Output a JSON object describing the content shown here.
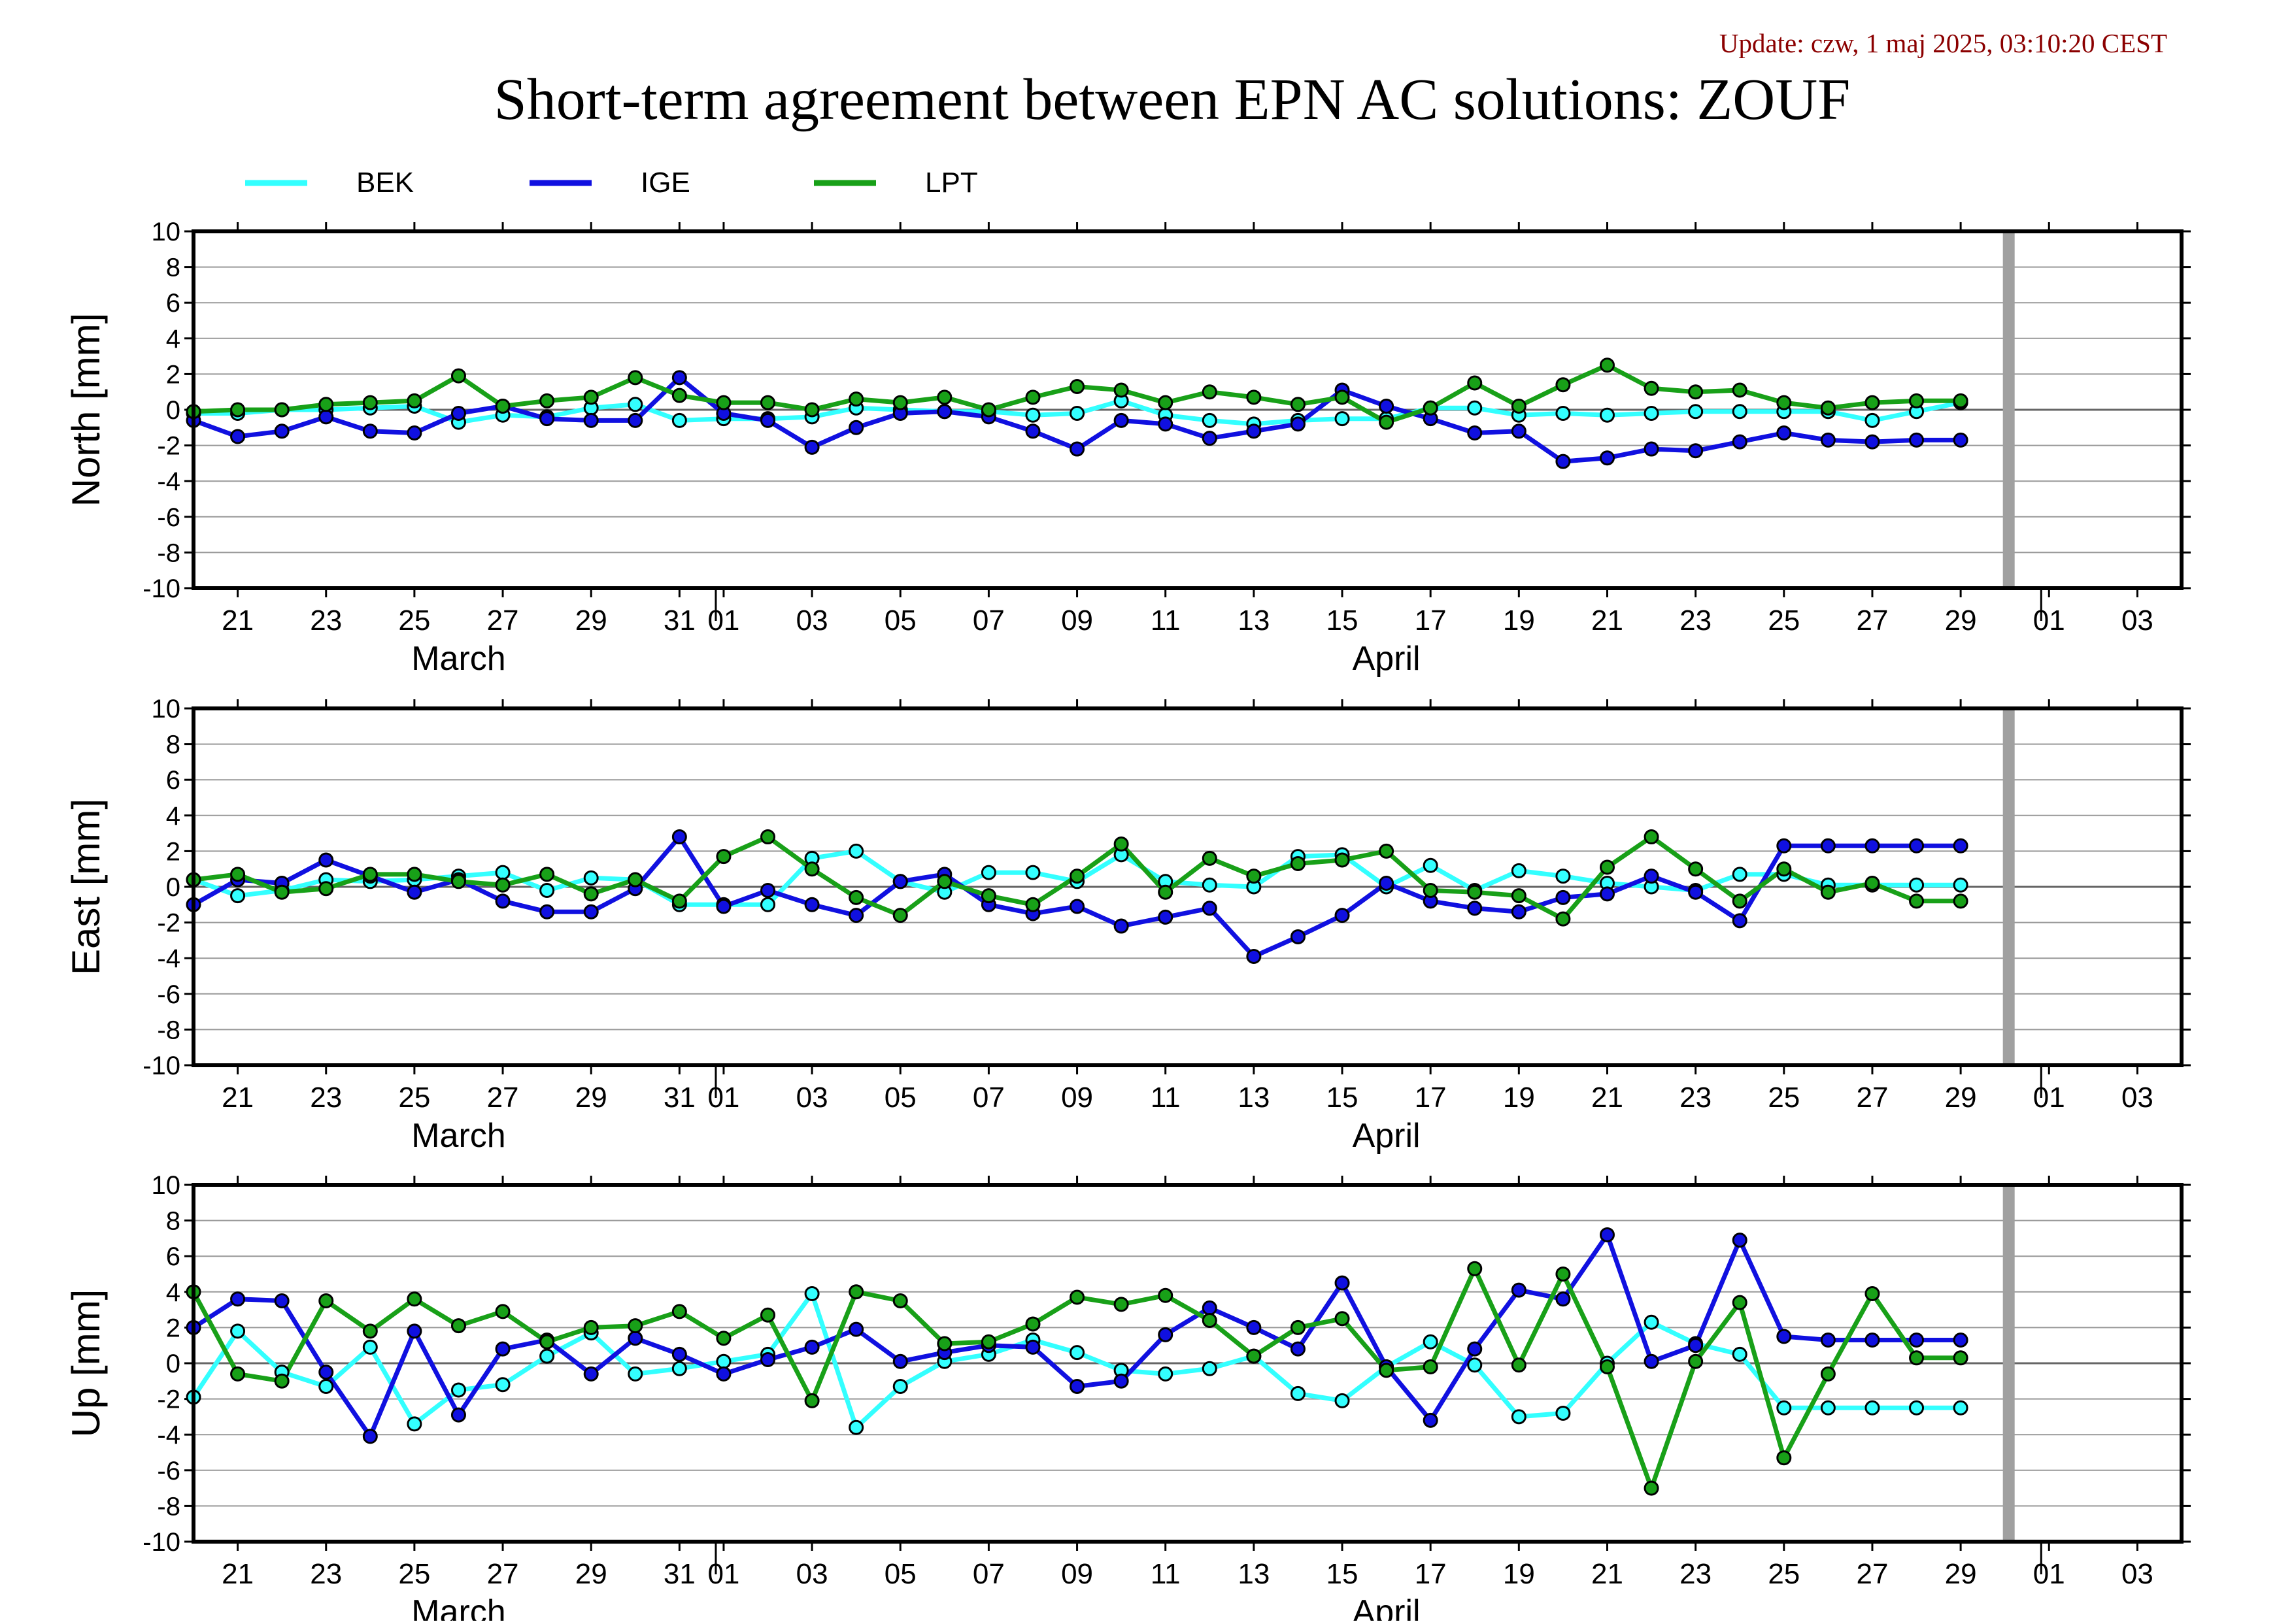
{
  "header": {
    "update": "Update: czw, 1 maj 2025, 03:10:20 CEST",
    "title": "Short-term agreement between EPN AC solutions: ZOUF"
  },
  "colors": {
    "BEK": "#33ffff",
    "IGE": "#1010e0",
    "LPT": "#18a018",
    "update_text": "#8b0000",
    "grid": "#999999",
    "now_bar": "#a0a0a0"
  },
  "legend": [
    {
      "name": "BEK",
      "color": "#33ffff"
    },
    {
      "name": "IGE",
      "color": "#1010e0"
    },
    {
      "name": "LPT",
      "color": "#18a018"
    }
  ],
  "x_axis": {
    "range": [
      "2025-03-20",
      "2025-05-04"
    ],
    "tick_labels": [
      "21",
      "23",
      "25",
      "27",
      "29",
      "31",
      "01",
      "03",
      "05",
      "07",
      "09",
      "11",
      "13",
      "15",
      "17",
      "19",
      "21",
      "23",
      "25",
      "27",
      "29",
      "01",
      "03"
    ],
    "month_labels": [
      "March",
      "April"
    ],
    "now_marker": "2025-04-30"
  },
  "chart_data": [
    {
      "type": "line",
      "ylabel": "North [mm]",
      "ylim": [
        -10,
        10
      ],
      "yticks": [
        "10",
        "8",
        "6",
        "4",
        "2",
        "0",
        "-2",
        "-4",
        "-6",
        "-8",
        "-10"
      ],
      "x_start": "2025-03-20",
      "series": [
        {
          "name": "BEK",
          "x": [
            0,
            1,
            2,
            3,
            4,
            5,
            6,
            7,
            8,
            9,
            10,
            11,
            12,
            13,
            14,
            15,
            16,
            17,
            18,
            19,
            20,
            21,
            22,
            23,
            24,
            25,
            26,
            27,
            28,
            29,
            30,
            31,
            32,
            33,
            34,
            35,
            36,
            37,
            38,
            39,
            40
          ],
          "y": [
            -0.2,
            -0.2,
            0,
            0,
            0.1,
            0.2,
            -0.7,
            -0.3,
            -0.4,
            0.1,
            0.3,
            -0.6,
            -0.5,
            -0.5,
            -0.4,
            0.1,
            0,
            -0.1,
            -0.1,
            -0.3,
            -0.2,
            0.5,
            -0.3,
            -0.6,
            -0.8,
            -0.6,
            -0.5,
            -0.5,
            0.1,
            0.1,
            -0.3,
            -0.2,
            -0.3,
            -0.2,
            -0.1,
            -0.1,
            -0.1,
            -0.1,
            -0.6,
            -0.1,
            0.4
          ]
        },
        {
          "name": "IGE",
          "x": [
            0,
            1,
            2,
            3,
            4,
            5,
            6,
            7,
            8,
            9,
            10,
            11,
            12,
            13,
            14,
            15,
            16,
            17,
            18,
            19,
            20,
            21,
            22,
            23,
            24,
            25,
            26,
            27,
            28,
            29,
            30,
            31,
            32,
            33,
            34,
            35,
            36,
            37,
            38,
            39,
            40
          ],
          "y": [
            -0.6,
            -1.5,
            -1.2,
            -0.4,
            -1.2,
            -1.3,
            -0.2,
            0.2,
            -0.5,
            -0.6,
            -0.6,
            1.8,
            -0.2,
            -0.6,
            -2.1,
            -1.0,
            -0.2,
            -0.1,
            -0.4,
            -1.2,
            -2.2,
            -0.6,
            -0.8,
            -1.6,
            -1.2,
            -0.8,
            1.1,
            0.2,
            -0.5,
            -1.3,
            -1.2,
            -2.9,
            -2.7,
            -2.2,
            -2.3,
            -1.8,
            -1.3,
            -1.7,
            -1.8,
            -1.7,
            -1.7
          ]
        },
        {
          "name": "LPT",
          "x": [
            0,
            1,
            2,
            3,
            4,
            5,
            6,
            7,
            8,
            9,
            10,
            11,
            12,
            13,
            14,
            15,
            16,
            17,
            18,
            19,
            20,
            21,
            22,
            23,
            24,
            25,
            26,
            27,
            28,
            29,
            30,
            31,
            32,
            33,
            34,
            35,
            36,
            37,
            38,
            39,
            40
          ],
          "y": [
            -0.1,
            0,
            0,
            0.3,
            0.4,
            0.5,
            1.9,
            0.2,
            0.5,
            0.7,
            1.8,
            0.8,
            0.4,
            0.4,
            0,
            0.6,
            0.4,
            0.7,
            0,
            0.7,
            1.3,
            1.1,
            0.4,
            1.0,
            0.7,
            0.3,
            0.7,
            -0.7,
            0.1,
            1.5,
            0.2,
            1.4,
            2.5,
            1.2,
            1.0,
            1.1,
            0.4,
            0.1,
            0.4,
            0.5,
            0.5
          ]
        }
      ]
    },
    {
      "type": "line",
      "ylabel": "East [mm]",
      "ylim": [
        -10,
        10
      ],
      "yticks": [
        "10",
        "8",
        "6",
        "4",
        "2",
        "0",
        "-2",
        "-4",
        "-6",
        "-8",
        "-10"
      ],
      "x_start": "2025-03-20",
      "series": [
        {
          "name": "BEK",
          "x": [
            0,
            1,
            2,
            3,
            4,
            5,
            6,
            7,
            8,
            9,
            10,
            11,
            12,
            13,
            14,
            15,
            16,
            17,
            18,
            19,
            20,
            21,
            22,
            23,
            24,
            25,
            26,
            27,
            28,
            29,
            30,
            31,
            32,
            33,
            34,
            35,
            36,
            37,
            38,
            39,
            40
          ],
          "y": [
            0.4,
            -0.5,
            -0.2,
            0.4,
            0.3,
            0.4,
            0.6,
            0.8,
            -0.2,
            0.5,
            0.4,
            -1.0,
            -1.0,
            -1.0,
            1.6,
            2.0,
            0.3,
            -0.3,
            0.8,
            0.8,
            0.3,
            1.8,
            0.3,
            0.1,
            0,
            1.7,
            1.8,
            0,
            1.2,
            -0.2,
            0.9,
            0.6,
            0.2,
            0,
            -0.2,
            0.7,
            0.7,
            0.1,
            0.1,
            0.1,
            0.1
          ]
        },
        {
          "name": "IGE",
          "x": [
            0,
            1,
            2,
            3,
            4,
            5,
            6,
            7,
            8,
            9,
            10,
            11,
            12,
            13,
            14,
            15,
            16,
            17,
            18,
            19,
            20,
            21,
            22,
            23,
            24,
            25,
            26,
            27,
            28,
            29,
            30,
            31,
            32,
            33,
            34,
            35,
            36,
            37,
            38,
            39,
            40
          ],
          "y": [
            -1.0,
            0.4,
            0.2,
            1.5,
            0.6,
            -0.3,
            0.4,
            -0.8,
            -1.4,
            -1.4,
            -0.1,
            2.8,
            -1.1,
            -0.2,
            -1.0,
            -1.6,
            0.3,
            0.7,
            -1.0,
            -1.5,
            -1.1,
            -2.2,
            -1.7,
            -1.2,
            -3.9,
            -2.8,
            -1.6,
            0.2,
            -0.8,
            -1.2,
            -1.4,
            -0.6,
            -0.4,
            0.6,
            -0.3,
            -1.9,
            2.3,
            2.3,
            2.3,
            2.3,
            2.3
          ]
        },
        {
          "name": "LPT",
          "x": [
            0,
            1,
            2,
            3,
            4,
            5,
            6,
            7,
            8,
            9,
            10,
            11,
            12,
            13,
            14,
            15,
            16,
            17,
            18,
            19,
            20,
            21,
            22,
            23,
            24,
            25,
            26,
            27,
            28,
            29,
            30,
            31,
            32,
            33,
            34,
            35,
            36,
            37,
            38,
            39,
            40
          ],
          "y": [
            0.4,
            0.7,
            -0.3,
            -0.1,
            0.7,
            0.7,
            0.3,
            0.1,
            0.7,
            -0.4,
            0.4,
            -0.8,
            1.7,
            2.8,
            1.0,
            -0.6,
            -1.6,
            0.3,
            -0.5,
            -1.0,
            0.6,
            2.4,
            -0.3,
            1.6,
            0.6,
            1.3,
            1.5,
            2.0,
            -0.2,
            -0.3,
            -0.5,
            -1.8,
            1.1,
            2.8,
            1.0,
            -0.8,
            1.0,
            -0.3,
            0.2,
            -0.8,
            -0.8
          ]
        }
      ]
    },
    {
      "type": "line",
      "ylabel": "Up [mm]",
      "ylim": [
        -10,
        10
      ],
      "yticks": [
        "10",
        "8",
        "6",
        "4",
        "2",
        "0",
        "-2",
        "-4",
        "-6",
        "-8",
        "-10"
      ],
      "x_start": "2025-03-20",
      "series": [
        {
          "name": "BEK",
          "x": [
            0,
            1,
            2,
            3,
            4,
            5,
            6,
            7,
            8,
            9,
            10,
            11,
            12,
            13,
            14,
            15,
            16,
            17,
            18,
            19,
            20,
            21,
            22,
            23,
            24,
            25,
            26,
            27,
            28,
            29,
            30,
            31,
            32,
            33,
            34,
            35,
            36,
            37,
            38,
            39,
            40
          ],
          "y": [
            -1.9,
            1.8,
            -0.5,
            -1.3,
            0.9,
            -3.4,
            -1.5,
            -1.2,
            0.4,
            1.7,
            -0.6,
            -0.3,
            0.1,
            0.5,
            3.9,
            -3.6,
            -1.3,
            0.1,
            0.5,
            1.3,
            0.6,
            -0.4,
            -0.6,
            -0.3,
            0.4,
            -1.7,
            -2.1,
            -0.2,
            1.2,
            -0.1,
            -3.0,
            -2.8,
            0,
            2.3,
            1.1,
            0.5,
            -2.5,
            -2.5,
            -2.5,
            -2.5,
            -2.5
          ]
        },
        {
          "name": "IGE",
          "x": [
            0,
            1,
            2,
            3,
            4,
            5,
            6,
            7,
            8,
            9,
            10,
            11,
            12,
            13,
            14,
            15,
            16,
            17,
            18,
            19,
            20,
            21,
            22,
            23,
            24,
            25,
            26,
            27,
            28,
            29,
            30,
            31,
            32,
            33,
            34,
            35,
            36,
            37,
            38,
            39,
            40
          ],
          "y": [
            2.0,
            3.6,
            3.5,
            -0.5,
            -4.1,
            1.8,
            -2.9,
            0.8,
            1.3,
            -0.6,
            1.4,
            0.5,
            -0.6,
            0.2,
            0.9,
            1.9,
            0.1,
            0.6,
            1.0,
            0.9,
            -1.3,
            -1.0,
            1.6,
            3.1,
            2.0,
            0.8,
            4.5,
            -0.2,
            -3.2,
            0.8,
            4.1,
            3.6,
            7.2,
            0.1,
            1.0,
            6.9,
            1.5,
            1.3,
            1.3,
            1.3,
            1.3
          ]
        },
        {
          "name": "LPT",
          "x": [
            0,
            1,
            2,
            3,
            4,
            5,
            6,
            7,
            8,
            9,
            10,
            11,
            12,
            13,
            14,
            15,
            16,
            17,
            18,
            19,
            20,
            21,
            22,
            23,
            24,
            25,
            26,
            27,
            28,
            29,
            30,
            31,
            32,
            33,
            34,
            35,
            36,
            37,
            38,
            39,
            40
          ],
          "y": [
            4.0,
            -0.6,
            -1.0,
            3.5,
            1.8,
            3.6,
            2.1,
            2.9,
            1.2,
            2.0,
            2.1,
            2.9,
            1.4,
            2.7,
            -2.1,
            4.0,
            3.5,
            1.1,
            1.2,
            2.2,
            3.7,
            3.3,
            3.8,
            2.4,
            0.4,
            2.0,
            2.5,
            -0.4,
            -0.2,
            5.3,
            -0.1,
            5.0,
            -0.2,
            -7.0,
            0.1,
            3.4,
            -5.3,
            -0.6,
            3.9,
            0.3,
            0.3
          ]
        }
      ]
    }
  ]
}
